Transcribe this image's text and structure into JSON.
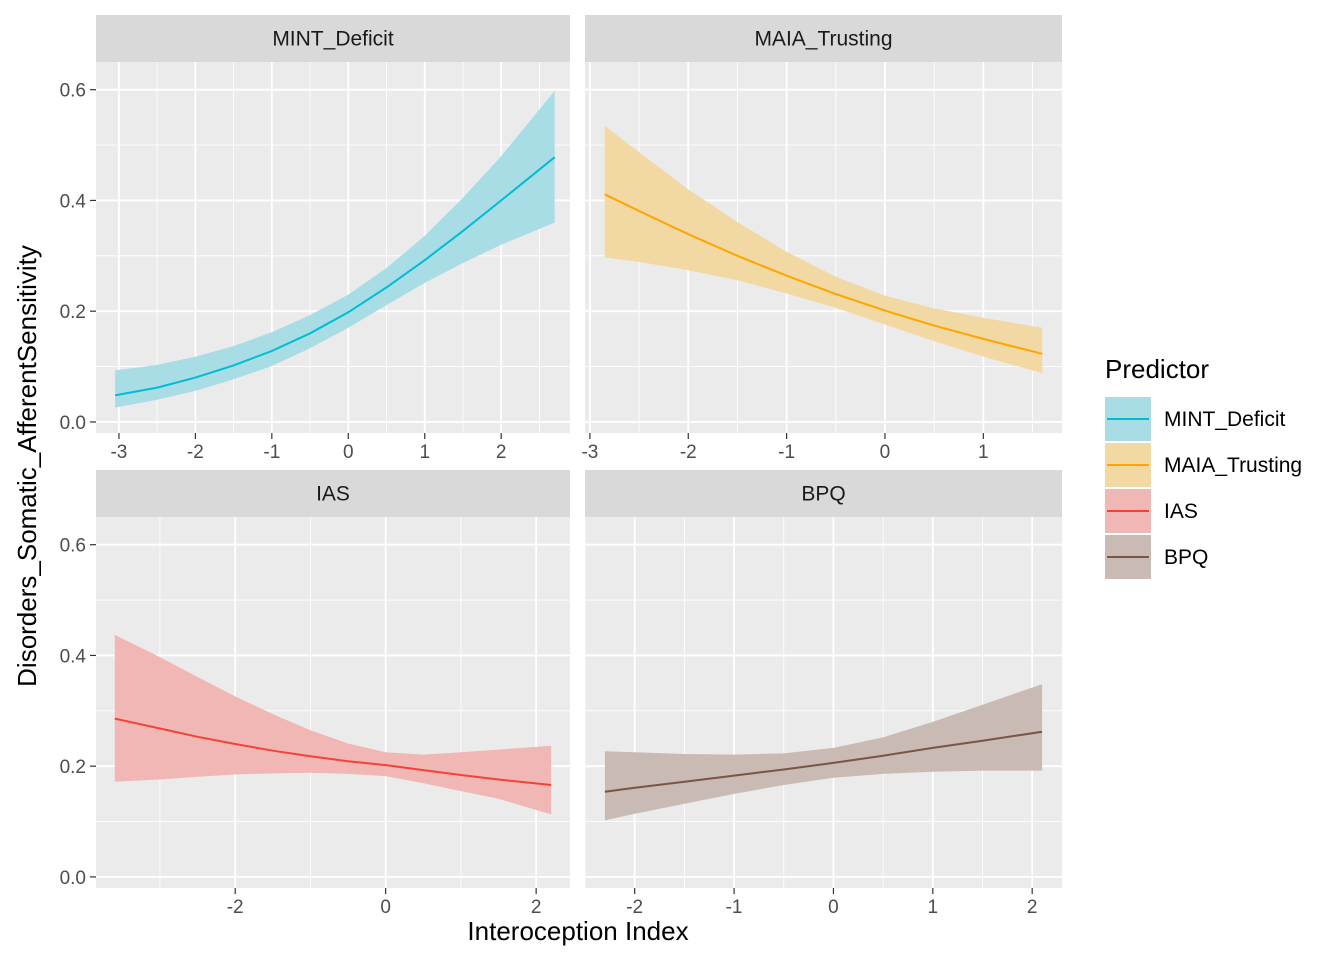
{
  "chart_data": {
    "type": "line",
    "xlabel": "Interoception Index",
    "ylabel": "Disorders_Somatic_AfferentSensitivity",
    "ylim": [
      0,
      0.6
    ],
    "grid": true,
    "legend": {
      "title": "Predictor",
      "placement": "right",
      "entries": [
        "MINT_Deficit",
        "MAIA_Trusting",
        "IAS",
        "BPQ"
      ]
    },
    "y_ticks": [
      "0.0",
      "0.2",
      "0.4",
      "0.6"
    ],
    "panels": [
      {
        "title": "MINT_Deficit",
        "color": "#00BCD4",
        "fill": "#A8DDE5",
        "x_ticks": [
          "-3",
          "-2",
          "-1",
          "0",
          "1",
          "2"
        ],
        "x": [
          -3.05,
          -2.5,
          -2.0,
          -1.5,
          -1.0,
          -0.5,
          0.0,
          0.5,
          1.0,
          1.5,
          2.0,
          2.7
        ],
        "y": [
          0.048,
          0.062,
          0.08,
          0.102,
          0.128,
          0.16,
          0.198,
          0.243,
          0.292,
          0.345,
          0.4,
          0.478
        ],
        "lower": [
          0.026,
          0.04,
          0.056,
          0.077,
          0.101,
          0.133,
          0.17,
          0.211,
          0.251,
          0.287,
          0.32,
          0.36
        ],
        "upper": [
          0.093,
          0.103,
          0.118,
          0.137,
          0.162,
          0.193,
          0.23,
          0.278,
          0.336,
          0.405,
          0.48,
          0.598
        ]
      },
      {
        "title": "MAIA_Trusting",
        "color": "#FFA500",
        "fill": "#F2D8A3",
        "x_ticks": [
          "-3",
          "-2",
          "-1",
          "0",
          "1"
        ],
        "x": [
          -2.85,
          -2.5,
          -2.0,
          -1.5,
          -1.0,
          -0.5,
          0.0,
          0.5,
          1.0,
          1.6
        ],
        "y": [
          0.411,
          0.381,
          0.339,
          0.3,
          0.264,
          0.231,
          0.201,
          0.174,
          0.15,
          0.123
        ],
        "lower": [
          0.297,
          0.289,
          0.274,
          0.256,
          0.232,
          0.206,
          0.176,
          0.146,
          0.118,
          0.088
        ],
        "upper": [
          0.535,
          0.487,
          0.42,
          0.361,
          0.307,
          0.262,
          0.228,
          0.205,
          0.188,
          0.17
        ]
      },
      {
        "title": "IAS",
        "color": "#F44336",
        "fill": "#F1B7B5",
        "x_ticks": [
          "-2",
          "0",
          "2"
        ],
        "x": [
          -3.6,
          -3.0,
          -2.5,
          -2.0,
          -1.5,
          -1.0,
          -0.5,
          0.0,
          0.5,
          1.0,
          1.5,
          2.2
        ],
        "y": [
          0.286,
          0.268,
          0.253,
          0.24,
          0.228,
          0.218,
          0.209,
          0.202,
          0.193,
          0.184,
          0.176,
          0.166
        ],
        "lower": [
          0.172,
          0.176,
          0.181,
          0.185,
          0.187,
          0.188,
          0.186,
          0.182,
          0.169,
          0.155,
          0.141,
          0.113
        ],
        "upper": [
          0.437,
          0.397,
          0.361,
          0.326,
          0.294,
          0.265,
          0.241,
          0.225,
          0.221,
          0.225,
          0.23,
          0.237
        ]
      },
      {
        "title": "BPQ",
        "color": "#795548",
        "fill": "#C9BAB3",
        "x_ticks": [
          "-2",
          "-1",
          "0",
          "1",
          "2"
        ],
        "x": [
          -2.3,
          -2.0,
          -1.5,
          -1.0,
          -0.5,
          0.0,
          0.5,
          1.0,
          1.5,
          2.1
        ],
        "y": [
          0.154,
          0.161,
          0.172,
          0.183,
          0.194,
          0.206,
          0.219,
          0.233,
          0.246,
          0.262
        ],
        "lower": [
          0.102,
          0.114,
          0.132,
          0.15,
          0.166,
          0.179,
          0.186,
          0.19,
          0.192,
          0.192
        ],
        "upper": [
          0.227,
          0.225,
          0.222,
          0.221,
          0.223,
          0.233,
          0.252,
          0.28,
          0.311,
          0.348
        ]
      }
    ]
  }
}
